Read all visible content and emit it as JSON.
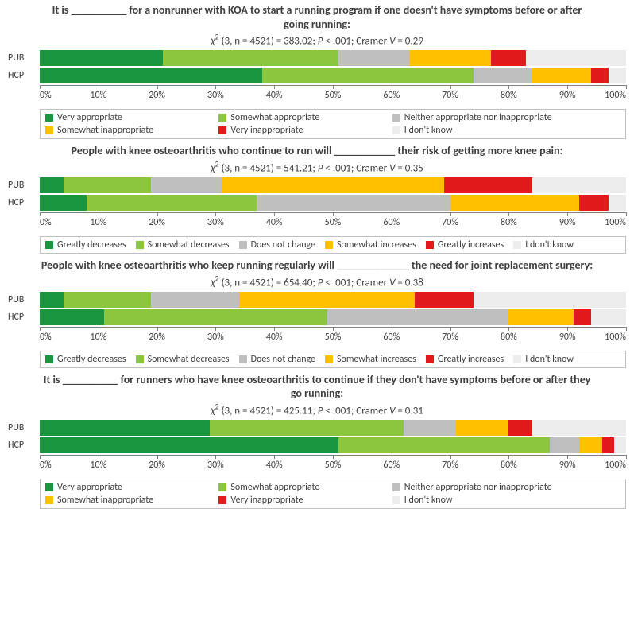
{
  "global": {
    "font_size_title": 14,
    "font_size_stats": 13,
    "font_size_row_label": 12,
    "font_size_axis": 12,
    "font_size_legend": 12,
    "colors": {
      "dark_green": "#1a9641",
      "light_green": "#8cc63f",
      "grey": "#bfbfbf",
      "orange": "#ffc000",
      "red": "#e3191c",
      "pale": "#ededed",
      "text": "#404040",
      "legend_border": "#c0c0c0",
      "axis": "#808080",
      "background": "#ffffff"
    },
    "axis": {
      "xmin": 0,
      "xmax": 100,
      "tick_step": 10,
      "tick_suffix": "%"
    }
  },
  "panels": [
    {
      "title": "It is __________ for a nonrunner with KOA to start a running program if one doesn't have symptoms before or after going running:",
      "stats": {
        "df": 3,
        "n": 4521,
        "chi2": "383.02",
        "p": "< .001",
        "cramer_v": "0.29"
      },
      "legend_layout": "two_row_3",
      "legend_labels": [
        "Very appropriate",
        "Somewhat appropriate",
        "Neither appropriate nor inappropriate",
        "Somewhat inappropriate",
        "Very inappropriate",
        "I don't know"
      ],
      "series_colors": [
        "dark_green",
        "light_green",
        "grey",
        "orange",
        "red",
        "pale"
      ],
      "rows": [
        {
          "label": "PUB",
          "values": [
            21,
            30,
            12,
            14,
            6,
            17
          ]
        },
        {
          "label": "HCP",
          "values": [
            38,
            36,
            10,
            10,
            3,
            3
          ]
        }
      ]
    },
    {
      "title": "People with knee osteoarthritis who continue to run will ___________ their risk of getting more knee pain:",
      "stats": {
        "df": 3,
        "n": 4521,
        "chi2": "541.21",
        "p": "< .001",
        "cramer_v": "0.35"
      },
      "legend_layout": "one_row",
      "legend_labels": [
        "Greatly decreases",
        "Somewhat decreases",
        "Does not change",
        "Somewhat increases",
        "Greatly increases",
        "I don't know"
      ],
      "series_colors": [
        "dark_green",
        "light_green",
        "grey",
        "orange",
        "red",
        "pale"
      ],
      "rows": [
        {
          "label": "PUB",
          "values": [
            4,
            15,
            12,
            38,
            15,
            16
          ]
        },
        {
          "label": "HCP",
          "values": [
            8,
            29,
            33,
            22,
            5,
            3
          ]
        }
      ]
    },
    {
      "title": "People with knee osteoarthritis who keep running regularly will _____________  the need for joint replacement surgery:",
      "stats": {
        "df": 3,
        "n": 4521,
        "chi2": "654.40",
        "p": "< .001",
        "cramer_v": "0.38"
      },
      "legend_layout": "one_row",
      "legend_labels": [
        "Greatly decreases",
        "Somewhat decreases",
        "Does not change",
        "Somewhat increases",
        "Greatly increases",
        "I don't know"
      ],
      "series_colors": [
        "dark_green",
        "light_green",
        "grey",
        "orange",
        "red",
        "pale"
      ],
      "rows": [
        {
          "label": "PUB",
          "values": [
            4,
            15,
            15,
            30,
            10,
            26
          ]
        },
        {
          "label": "HCP",
          "values": [
            11,
            38,
            31,
            11,
            3,
            6
          ]
        }
      ]
    },
    {
      "title": "It is __________ for runners who have knee osteoarthritis to continue if they don't have symptoms before or after they go running:",
      "stats": {
        "df": 3,
        "n": 4521,
        "chi2": "425.11",
        "p": "< .001",
        "cramer_v": "0.31"
      },
      "legend_layout": "two_row_3",
      "legend_labels": [
        "Very appropriate",
        "Somewhat appropriate",
        "Neither appropriate nor inappropriate",
        "Somewhat inappropriate",
        "Very inappropriate",
        "I don't know"
      ],
      "series_colors": [
        "dark_green",
        "light_green",
        "grey",
        "orange",
        "red",
        "pale"
      ],
      "rows": [
        {
          "label": "PUB",
          "values": [
            29,
            33,
            9,
            9,
            4,
            16
          ]
        },
        {
          "label": "HCP",
          "values": [
            51,
            36,
            5,
            4,
            2,
            2
          ]
        }
      ]
    }
  ]
}
